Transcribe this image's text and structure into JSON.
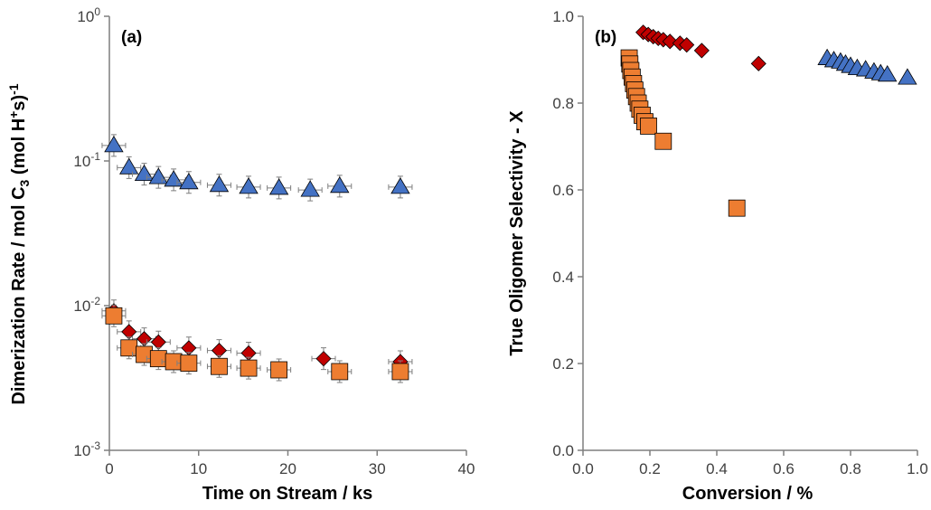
{
  "chart_data": [
    {
      "type": "scatter",
      "panel_label": "(a)",
      "xlabel": "Time on Stream / ks",
      "ylabel_parts": {
        "main": "Dimerization Rate / mol C",
        "sub3": "3",
        "mid": " (mol H",
        "sup_plus": "+",
        "end": "s)",
        "sup_neg1": "-1"
      },
      "xlim": [
        0,
        40
      ],
      "ylim": [
        0.001,
        1
      ],
      "yscale": "log",
      "xticks": [
        0,
        10,
        20,
        30,
        40
      ],
      "xtick_labels": [
        "0",
        "10",
        "20",
        "30",
        "40"
      ],
      "ytick_base": "10",
      "ytick_exponents": [
        "0",
        "-1",
        "-2",
        "-3"
      ],
      "grid": false,
      "series": [
        {
          "marker": "triangle",
          "color": "#4472C4",
          "x": [
            0.5,
            2.2,
            3.9,
            5.5,
            7.2,
            8.9,
            12.3,
            15.6,
            19.0,
            22.5,
            25.8,
            32.6
          ],
          "y": [
            0.128,
            0.09,
            0.081,
            0.077,
            0.074,
            0.071,
            0.068,
            0.066,
            0.065,
            0.063,
            0.067,
            0.066
          ]
        },
        {
          "marker": "diamond",
          "color": "#C00000",
          "x": [
            0.5,
            2.2,
            3.9,
            5.5,
            8.9,
            12.3,
            15.6,
            24.0,
            32.6
          ],
          "y": [
            0.0092,
            0.0066,
            0.0059,
            0.0056,
            0.0051,
            0.0049,
            0.0047,
            0.0043,
            0.0041
          ]
        },
        {
          "marker": "square",
          "color": "#ED7D31",
          "x": [
            0.5,
            2.2,
            3.9,
            5.5,
            7.2,
            8.9,
            12.3,
            15.6,
            19.0,
            25.8,
            32.6
          ],
          "y": [
            0.0085,
            0.0051,
            0.0046,
            0.0043,
            0.0041,
            0.004,
            0.0038,
            0.0037,
            0.0036,
            0.0035,
            0.0035
          ]
        }
      ]
    },
    {
      "type": "scatter",
      "panel_label": "(b)",
      "xlabel": "Conversion / %",
      "ylabel": "True Oligomer Selectivity - X",
      "xlim": [
        0,
        1
      ],
      "ylim": [
        0,
        1
      ],
      "xticks": [
        0,
        0.2,
        0.4,
        0.6,
        0.8,
        1.0
      ],
      "xtick_labels": [
        "0.0",
        "0.2",
        "0.4",
        "0.6",
        "0.8",
        "1.0"
      ],
      "yticks": [
        0,
        0.2,
        0.4,
        0.6,
        0.8,
        1.0
      ],
      "ytick_labels": [
        "0.0",
        "0.2",
        "0.4",
        "0.6",
        "0.8",
        "1.0"
      ],
      "grid": false,
      "series": [
        {
          "marker": "triangle",
          "color": "#4472C4",
          "x": [
            0.73,
            0.75,
            0.77,
            0.785,
            0.8,
            0.82,
            0.845,
            0.87,
            0.89,
            0.91,
            0.97
          ],
          "y": [
            0.903,
            0.898,
            0.895,
            0.89,
            0.885,
            0.88,
            0.877,
            0.872,
            0.868,
            0.865,
            0.858
          ]
        },
        {
          "marker": "diamond",
          "color": "#C00000",
          "x": [
            0.18,
            0.195,
            0.21,
            0.225,
            0.24,
            0.26,
            0.29,
            0.31,
            0.355,
            0.525
          ],
          "y": [
            0.963,
            0.958,
            0.953,
            0.949,
            0.946,
            0.942,
            0.938,
            0.934,
            0.921,
            0.891
          ]
        },
        {
          "marker": "square",
          "color": "#ED7D31",
          "x": [
            0.138,
            0.14,
            0.143,
            0.147,
            0.151,
            0.155,
            0.16,
            0.165,
            0.17,
            0.177,
            0.185,
            0.196,
            0.24,
            0.46
          ],
          "y": [
            0.904,
            0.89,
            0.875,
            0.86,
            0.845,
            0.83,
            0.815,
            0.8,
            0.786,
            0.772,
            0.757,
            0.747,
            0.712,
            0.558
          ]
        }
      ]
    }
  ]
}
